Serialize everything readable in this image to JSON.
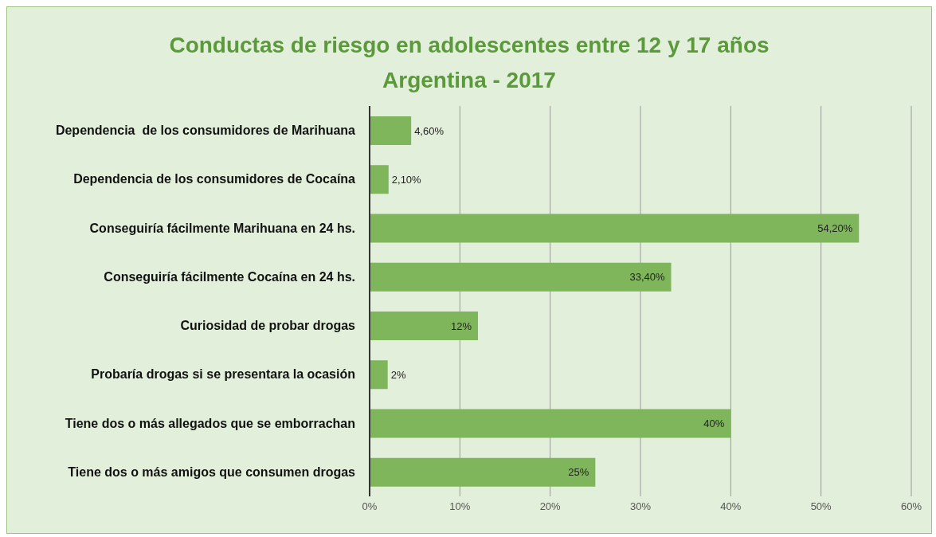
{
  "chart_data": {
    "type": "bar",
    "orientation": "horizontal",
    "title": "Conductas de riesgo en adolescentes entre 12 y 17 años",
    "subtitle": "Argentina - 2017",
    "categories": [
      "Dependencia  de los consumidores de Marihuana",
      "Dependencia de los consumidores de Cocaína",
      "Conseguiría fácilmente Marihuana en 24 hs.",
      "Conseguiría fácilmente Cocaína en 24 hs.",
      "Curiosidad de probar drogas",
      "Probaría drogas si se presentara la ocasión",
      "Tiene dos o más allegados que se emborrachan",
      "Tiene dos o más amigos que consumen drogas"
    ],
    "values": [
      4.6,
      2.1,
      54.2,
      33.4,
      12,
      2,
      40,
      25
    ],
    "value_labels": [
      "4,60%",
      "2,10%",
      "54,20%",
      "33,40%",
      "12%",
      "2%",
      "40%",
      "25%"
    ],
    "color": "#7fb55b",
    "xlim": [
      0,
      60
    ],
    "xticks": [
      {
        "value": 0,
        "label": "0%"
      },
      {
        "value": 10,
        "label": "10%"
      },
      {
        "value": 20,
        "label": "20%"
      },
      {
        "value": 30,
        "label": "30%"
      },
      {
        "value": 40,
        "label": "40%"
      },
      {
        "value": 50,
        "label": "50%"
      },
      {
        "value": 60,
        "label": "60%"
      }
    ],
    "grid": "x",
    "legend": false
  }
}
